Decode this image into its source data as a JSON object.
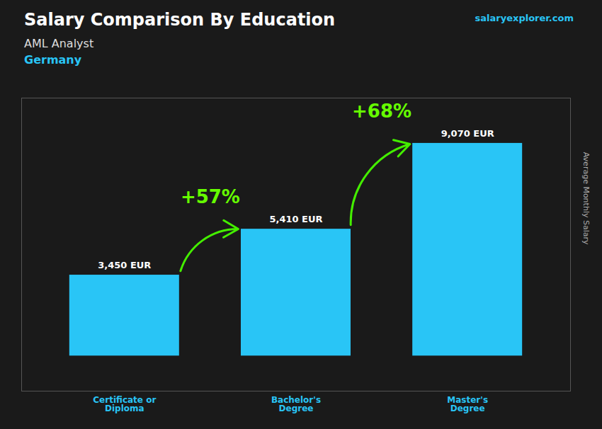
{
  "chart_data": {
    "type": "bar",
    "title": "Salary Comparison By Education",
    "subtitle": [
      "AML Analyst",
      "Germany"
    ],
    "caption": "salaryexplorer.com",
    "ylabel": "Average Monthly Salary",
    "categories": [
      "Certificate or\nDiploma",
      "Bachelor's\nDegree",
      "Master's\nDegree"
    ],
    "values": [
      3450,
      5410,
      9070
    ],
    "value_labels": [
      "3,450 EUR",
      "5,410 EUR",
      "9,070 EUR"
    ],
    "data_labels": true,
    "annotations": [
      "+57%",
      "+68%"
    ],
    "color": "#29c5f6",
    "annotation_color": "#66ff00",
    "arrow_color": "#44ee00",
    "background_color": "#1a1a1a",
    "ylim": [
      -1500,
      11000
    ],
    "tick_labels": "x",
    "grid": false
  }
}
